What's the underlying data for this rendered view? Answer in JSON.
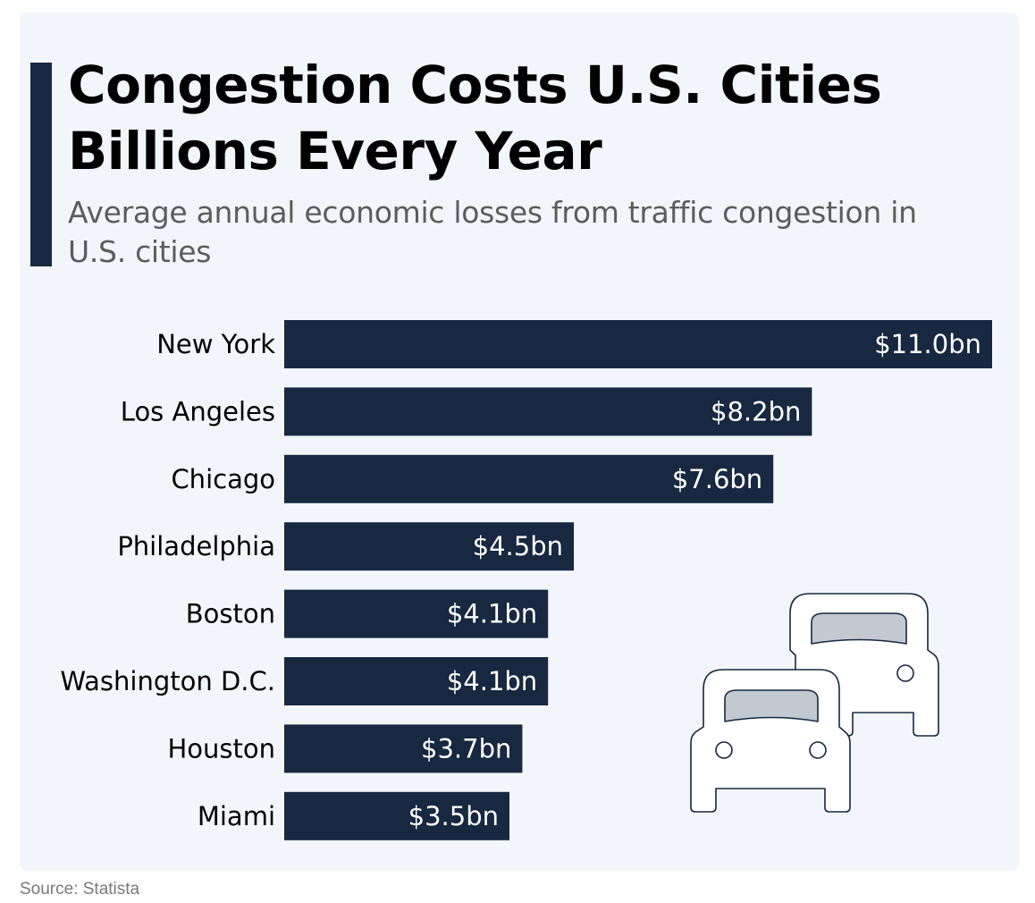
{
  "header": {
    "title": "Congestion Costs U.S. Cities Billions Every Year",
    "subtitle": "Average annual economic losses from traffic congestion in U.S. cities"
  },
  "footer": {
    "source": "Source: Statista"
  },
  "colors": {
    "bar": "#172840",
    "background": "#f2f6fa",
    "bar_label": "#ffffff",
    "category_label": "#000000",
    "icon_stroke": "#172840",
    "icon_window": "#c3c9d1"
  },
  "illustration": {
    "icon": "two-cars-icon"
  },
  "chart_data": {
    "type": "bar",
    "orientation": "horizontal",
    "categories": [
      "New York",
      "Los Angeles",
      "Chicago",
      "Philadelphia",
      "Boston",
      "Washington D.C.",
      "Houston",
      "Miami"
    ],
    "values": [
      11.0,
      8.2,
      7.6,
      4.5,
      4.1,
      4.1,
      3.7,
      3.5
    ],
    "value_labels": [
      "$11.0bn",
      "$8.2bn",
      "$7.6bn",
      "$4.5bn",
      "$4.1bn",
      "$4.1bn",
      "$3.7bn",
      "$3.5bn"
    ],
    "title": "Congestion Costs U.S. Cities Billions Every Year",
    "subtitle": "Average annual economic losses from traffic congestion in U.S. cities",
    "xlim": [
      0,
      11.0
    ],
    "grid": false,
    "legend": "none"
  }
}
